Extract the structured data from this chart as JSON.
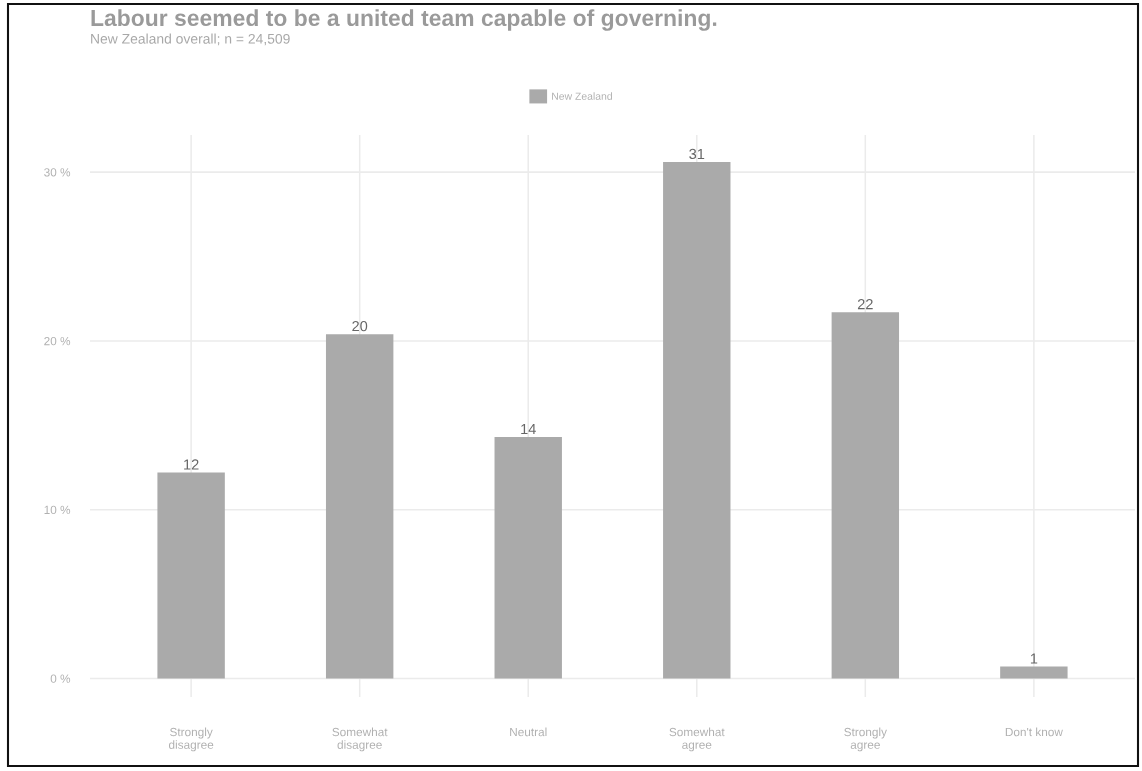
{
  "chart_data": {
    "type": "bar",
    "title": "Labour seemed to be a united team capable of governing.",
    "subtitle": "New Zealand overall; n = 24,509",
    "categories": [
      "Strongly\ndisagree",
      "Somewhat\ndisagree",
      "Neutral",
      "Somewhat\nagree",
      "Strongly\nagree",
      "Don't know"
    ],
    "series": [
      {
        "name": "New Zealand",
        "color": "#aaaaaa",
        "values": [
          12.2,
          20.4,
          14.3,
          30.6,
          21.7,
          0.7
        ],
        "value_labels": [
          "12",
          "20",
          "14",
          "31",
          "22",
          "1"
        ]
      }
    ],
    "ylim": [
      -1.1,
      32.2
    ],
    "yticks": [
      {
        "value": 0,
        "label": "0 %"
      },
      {
        "value": 10,
        "label": "10 %"
      },
      {
        "value": 20,
        "label": "20 %"
      },
      {
        "value": 30,
        "label": "30 %"
      }
    ],
    "grid": true,
    "legend": "top"
  }
}
